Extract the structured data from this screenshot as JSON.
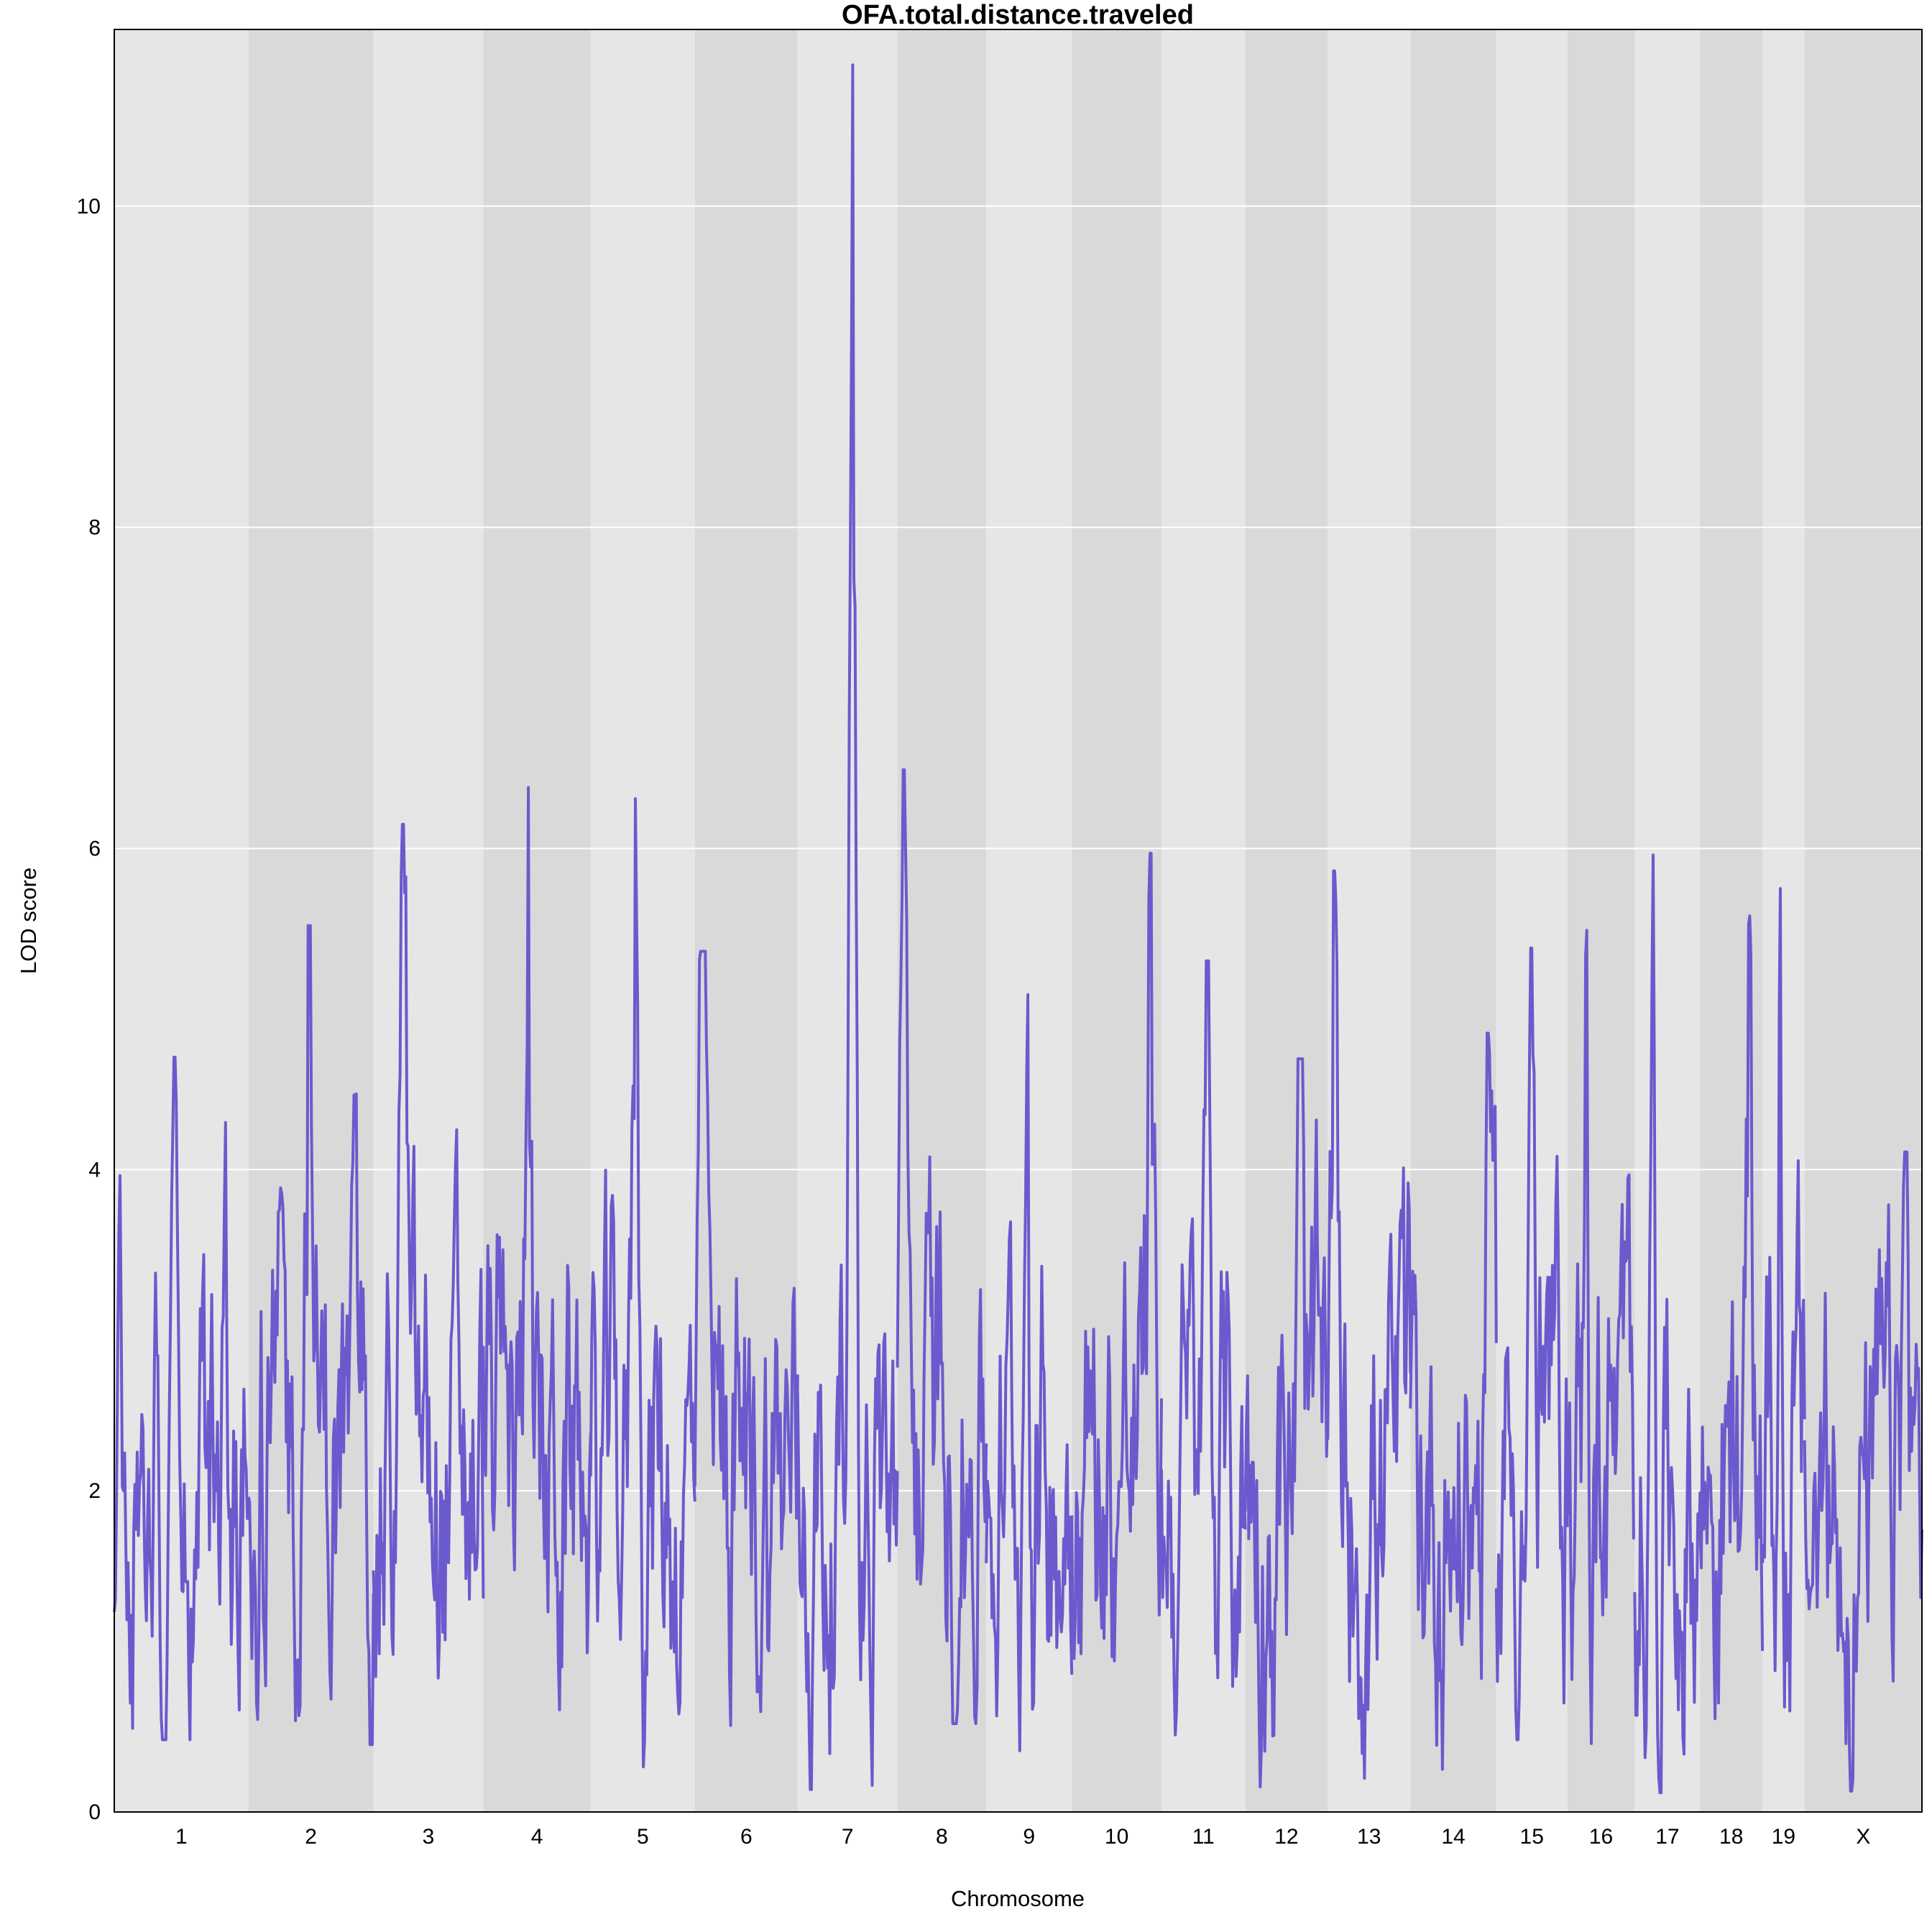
{
  "chart_data": {
    "type": "line",
    "title": "OFA.total.distance.traveled",
    "xlabel": "Chromosome",
    "ylabel": "LOD score",
    "ylim": [
      0,
      11.1
    ],
    "y_ticks": [
      0,
      2,
      4,
      6,
      8,
      10
    ],
    "grid": "horizontal",
    "colors": {
      "line": "#6a5acd",
      "band_light": "#e6e6e6",
      "band_dark": "#d9d9d9",
      "grid": "#ffffff"
    },
    "chromosomes": [
      {
        "label": "1",
        "length": 195.5,
        "lod_min": 0.45,
        "lod_max": 4.7,
        "peak": 4.7,
        "peak_at": 0.45
      },
      {
        "label": "2",
        "length": 182.1,
        "lod_min": 0.42,
        "lod_max": 5.52,
        "peak": 5.52,
        "peak_at": 0.48
      },
      {
        "label": "3",
        "length": 160.0,
        "lod_min": 0.13,
        "lod_max": 6.15,
        "peak": 6.15,
        "peak_at": 0.27
      },
      {
        "label": "4",
        "length": 156.5,
        "lod_min": 0.26,
        "lod_max": 6.38,
        "peak": 6.38,
        "peak_at": 0.42
      },
      {
        "label": "5",
        "length": 151.8,
        "lod_min": 0.19,
        "lod_max": 6.31,
        "peak": 6.31,
        "peak_at": 0.43
      },
      {
        "label": "6",
        "length": 149.7,
        "lod_min": 0.22,
        "lod_max": 5.36,
        "peak": 5.36,
        "peak_at": 0.08
      },
      {
        "label": "7",
        "length": 145.4,
        "lod_min": 0.14,
        "lod_max": 10.88,
        "peak": 10.88,
        "peak_at": 0.55
      },
      {
        "label": "8",
        "length": 129.4,
        "lod_min": 0.55,
        "lod_max": 6.49,
        "peak": 6.49,
        "peak_at": 0.08
      },
      {
        "label": "9",
        "length": 124.6,
        "lod_min": 0.27,
        "lod_max": 5.09,
        "peak": 5.09,
        "peak_at": 0.48
      },
      {
        "label": "10",
        "length": 130.7,
        "lod_min": 0.45,
        "lod_max": 5.97,
        "peak": 5.97,
        "peak_at": 0.88
      },
      {
        "label": "11",
        "length": 122.1,
        "lod_min": 0.17,
        "lod_max": 5.3,
        "peak": 5.3,
        "peak_at": 0.55
      },
      {
        "label": "12",
        "length": 120.1,
        "lod_min": 0.15,
        "lod_max": 4.69,
        "peak": 4.69,
        "peak_at": 0.66
      },
      {
        "label": "13",
        "length": 120.4,
        "lod_min": 0.21,
        "lod_max": 5.86,
        "peak": 5.86,
        "peak_at": 0.08
      },
      {
        "label": "14",
        "length": 125.2,
        "lod_min": 0.21,
        "lod_max": 4.85,
        "peak": 4.85,
        "peak_at": 0.9
      },
      {
        "label": "15",
        "length": 103.5,
        "lod_min": 0.45,
        "lod_max": 5.38,
        "peak": 5.38,
        "peak_at": 0.5
      },
      {
        "label": "16",
        "length": 98.2,
        "lod_min": 0.3,
        "lod_max": 5.49,
        "peak": 5.49,
        "peak_at": 0.28
      },
      {
        "label": "17",
        "length": 95.2,
        "lod_min": 0.12,
        "lod_max": 5.96,
        "peak": 5.96,
        "peak_at": 0.28
      },
      {
        "label": "18",
        "length": 90.8,
        "lod_min": 0.19,
        "lod_max": 5.58,
        "peak": 5.58,
        "peak_at": 0.8
      },
      {
        "label": "19",
        "length": 61.4,
        "lod_min": 0.18,
        "lod_max": 5.75,
        "peak": 5.75,
        "peak_at": 0.42
      },
      {
        "label": "X",
        "length": 171.0,
        "lod_min": 0.13,
        "lod_max": 4.11,
        "peak": 4.11,
        "peak_at": 0.86
      }
    ]
  }
}
